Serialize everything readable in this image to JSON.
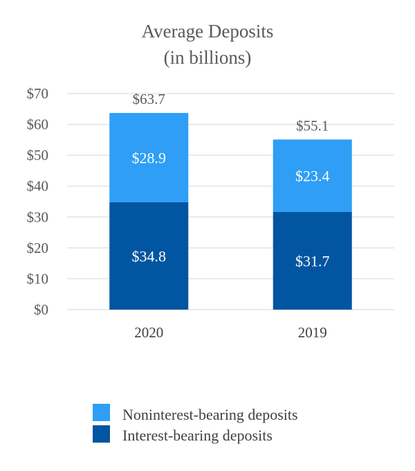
{
  "chart_data": {
    "type": "stacked-bar",
    "title": [
      "Average Deposits",
      "(in billions)"
    ],
    "categories": [
      "2020",
      "2019"
    ],
    "series": [
      {
        "name": "Interest-bearing deposits",
        "values": [
          34.8,
          31.7
        ],
        "labels": [
          "$34.8",
          "$31.7"
        ],
        "color": "#0255A0"
      },
      {
        "name": "Noninterest-bearing deposits",
        "values": [
          28.9,
          23.4
        ],
        "labels": [
          "$28.9",
          "$23.4"
        ],
        "color": "#2E9EF6"
      }
    ],
    "totals": [
      63.7,
      55.1
    ],
    "total_labels": [
      "$63.7",
      "$55.1"
    ],
    "ylim": [
      0,
      70
    ],
    "yticks": [
      0,
      10,
      20,
      30,
      40,
      50,
      60,
      70
    ],
    "ytick_labels": [
      "$0",
      "$10",
      "$20",
      "$30",
      "$40",
      "$50",
      "$60",
      "$70"
    ],
    "legend": [
      "Noninterest-bearing deposits",
      "Interest-bearing deposits"
    ],
    "legend_placement": "bottom-center",
    "grid": true
  }
}
